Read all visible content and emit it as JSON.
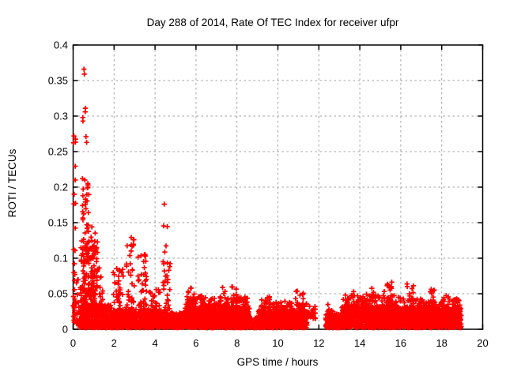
{
  "chart_data": {
    "type": "scatter",
    "title": "Day 288 of 2014, Rate Of TEC Index for receiver ufpr",
    "xlabel": "GPS time / hours",
    "ylabel": "ROTI / TECUs",
    "xlim": [
      0,
      20
    ],
    "ylim": [
      0,
      0.4
    ],
    "xticks": [
      0,
      2,
      4,
      6,
      8,
      10,
      12,
      14,
      16,
      18,
      20
    ],
    "xtick_labels": [
      "0",
      "2",
      "4",
      "6",
      "8",
      "10",
      "12",
      "14",
      "16",
      "18",
      "20"
    ],
    "yticks": [
      0,
      0.05,
      0.1,
      0.15,
      0.2,
      0.25,
      0.3,
      0.35,
      0.4
    ],
    "ytick_labels": [
      "0",
      "0.05",
      "0.1",
      "0.15",
      "0.2",
      "0.25",
      "0.3",
      "0.35",
      "0.4"
    ],
    "grid": {
      "show": true,
      "color": "#a0a0a0",
      "dash": "2.5,3.5"
    },
    "marker": {
      "shape": "plus",
      "color": "#ff0000",
      "size": 6.4,
      "stroke_width": 1.7
    },
    "background": "#ffffff",
    "border_color": "#000000",
    "seed": 20142881,
    "data_gaps": [
      [
        11.85,
        12.33
      ],
      [
        18.95,
        20
      ]
    ],
    "outliers": [
      [
        0.53,
        0.366
      ],
      [
        0.55,
        0.359
      ],
      [
        0.6,
        0.311
      ],
      [
        0.59,
        0.306
      ],
      [
        0.47,
        0.298
      ],
      [
        0.48,
        0.293
      ],
      [
        0.04,
        0.272
      ],
      [
        0.63,
        0.271
      ],
      [
        0.66,
        0.263
      ],
      [
        0.1,
        0.21
      ],
      [
        0.72,
        0.205
      ],
      [
        0.7,
        0.199
      ],
      [
        0.05,
        0.19
      ],
      [
        4.45,
        0.176
      ],
      [
        2.97,
        0.126
      ]
    ],
    "density_segments": [
      {
        "x0": 0.0,
        "x1": 0.25,
        "n": 25,
        "y0": 0.008,
        "y1": 0.07,
        "pow": 1.3
      },
      {
        "x0": 0.0,
        "x1": 0.12,
        "n": 20,
        "y0": 0.03,
        "y1": 0.268,
        "pow": 1.5
      },
      {
        "x0": 0.25,
        "x1": 1.9,
        "n": 380,
        "y0": 0.002,
        "y1": 0.034,
        "pow": 1.3
      },
      {
        "x0": 1.9,
        "x1": 4.3,
        "n": 540,
        "y0": 0.002,
        "y1": 0.028,
        "pow": 1.3
      },
      {
        "x0": 4.3,
        "x1": 5.45,
        "n": 240,
        "y0": 0.002,
        "y1": 0.024,
        "pow": 1.3
      },
      {
        "x0": 5.45,
        "x1": 8.6,
        "n": 720,
        "y0": 0.002,
        "y1": 0.03,
        "pow": 1.3
      },
      {
        "x0": 8.6,
        "x1": 9.05,
        "n": 70,
        "y0": 0.002,
        "y1": 0.016,
        "pow": 1.3
      },
      {
        "x0": 9.05,
        "x1": 11.45,
        "n": 540,
        "y0": 0.002,
        "y1": 0.026,
        "pow": 1.3
      },
      {
        "x0": 11.45,
        "x1": 11.85,
        "n": 25,
        "y0": 0.015,
        "y1": 0.034,
        "pow": 1.5
      },
      {
        "x0": 12.33,
        "x1": 13.1,
        "n": 130,
        "y0": 0.002,
        "y1": 0.022,
        "pow": 1.3
      },
      {
        "x0": 13.1,
        "x1": 16.0,
        "n": 660,
        "y0": 0.002,
        "y1": 0.032,
        "pow": 1.3
      },
      {
        "x0": 16.0,
        "x1": 18.95,
        "n": 640,
        "y0": 0.002,
        "y1": 0.03,
        "pow": 1.3
      },
      {
        "x0": 0.35,
        "x1": 1.2,
        "n": 160,
        "y0": 0.018,
        "y1": 0.125,
        "pow": 2.0
      },
      {
        "x0": 5.5,
        "x1": 8.55,
        "n": 260,
        "y0": 0.018,
        "y1": 0.046,
        "pow": 2.0
      },
      {
        "x0": 9.05,
        "x1": 11.4,
        "n": 170,
        "y0": 0.016,
        "y1": 0.038,
        "pow": 2.0
      },
      {
        "x0": 13.15,
        "x1": 16.0,
        "n": 260,
        "y0": 0.018,
        "y1": 0.048,
        "pow": 2.0
      },
      {
        "x0": 16.1,
        "x1": 18.9,
        "n": 210,
        "y0": 0.016,
        "y1": 0.043,
        "pow": 2.0
      },
      {
        "x0": 0.45,
        "x1": 0.78,
        "n": 60,
        "y0": 0.04,
        "y1": 0.215,
        "pow": 1.4
      },
      {
        "x0": 0.8,
        "x1": 1.08,
        "n": 32,
        "y0": 0.035,
        "y1": 0.148,
        "pow": 1.6
      },
      {
        "x0": 1.1,
        "x1": 1.45,
        "n": 26,
        "y0": 0.025,
        "y1": 0.092,
        "pow": 1.6
      },
      {
        "x0": 1.95,
        "x1": 2.45,
        "n": 45,
        "y0": 0.02,
        "y1": 0.086,
        "pow": 1.8
      },
      {
        "x0": 2.6,
        "x1": 3.0,
        "n": 38,
        "y0": 0.02,
        "y1": 0.131,
        "pow": 1.8
      },
      {
        "x0": 3.15,
        "x1": 3.6,
        "n": 42,
        "y0": 0.02,
        "y1": 0.107,
        "pow": 1.8
      },
      {
        "x0": 3.6,
        "x1": 4.25,
        "n": 32,
        "y0": 0.015,
        "y1": 0.058,
        "pow": 1.8
      },
      {
        "x0": 4.35,
        "x1": 4.75,
        "n": 32,
        "y0": 0.025,
        "y1": 0.154,
        "pow": 1.5
      },
      {
        "x0": 5.55,
        "x1": 5.95,
        "n": 26,
        "y0": 0.02,
        "y1": 0.062,
        "pow": 1.6
      },
      {
        "x0": 6.05,
        "x1": 6.55,
        "n": 22,
        "y0": 0.015,
        "y1": 0.048,
        "pow": 1.6
      },
      {
        "x0": 6.6,
        "x1": 7.2,
        "n": 25,
        "y0": 0.015,
        "y1": 0.045,
        "pow": 1.6
      },
      {
        "x0": 7.25,
        "x1": 8.0,
        "n": 45,
        "y0": 0.02,
        "y1": 0.061,
        "pow": 1.7
      },
      {
        "x0": 8.1,
        "x1": 8.5,
        "n": 16,
        "y0": 0.015,
        "y1": 0.044,
        "pow": 1.6
      },
      {
        "x0": 9.15,
        "x1": 9.7,
        "n": 30,
        "y0": 0.015,
        "y1": 0.046,
        "pow": 1.7
      },
      {
        "x0": 9.75,
        "x1": 10.2,
        "n": 18,
        "y0": 0.012,
        "y1": 0.034,
        "pow": 1.6
      },
      {
        "x0": 10.25,
        "x1": 10.7,
        "n": 20,
        "y0": 0.015,
        "y1": 0.04,
        "pow": 1.6
      },
      {
        "x0": 10.8,
        "x1": 11.3,
        "n": 26,
        "y0": 0.015,
        "y1": 0.055,
        "pow": 1.7
      },
      {
        "x0": 12.42,
        "x1": 12.68,
        "n": 14,
        "y0": 0.01,
        "y1": 0.035,
        "pow": 1.6
      },
      {
        "x0": 12.75,
        "x1": 12.98,
        "n": 10,
        "y0": 0.01,
        "y1": 0.03,
        "pow": 1.6
      },
      {
        "x0": 13.3,
        "x1": 13.8,
        "n": 26,
        "y0": 0.02,
        "y1": 0.054,
        "pow": 1.7
      },
      {
        "x0": 14.05,
        "x1": 14.35,
        "n": 16,
        "y0": 0.02,
        "y1": 0.05,
        "pow": 1.6
      },
      {
        "x0": 14.45,
        "x1": 14.8,
        "n": 20,
        "y0": 0.02,
        "y1": 0.058,
        "pow": 1.6
      },
      {
        "x0": 15.15,
        "x1": 15.6,
        "n": 32,
        "y0": 0.025,
        "y1": 0.069,
        "pow": 1.5
      },
      {
        "x0": 16.25,
        "x1": 16.65,
        "n": 26,
        "y0": 0.02,
        "y1": 0.064,
        "pow": 1.6
      },
      {
        "x0": 16.7,
        "x1": 17.25,
        "n": 18,
        "y0": 0.012,
        "y1": 0.04,
        "pow": 1.6
      },
      {
        "x0": 17.35,
        "x1": 17.75,
        "n": 22,
        "y0": 0.015,
        "y1": 0.057,
        "pow": 1.6
      },
      {
        "x0": 18.0,
        "x1": 18.4,
        "n": 22,
        "y0": 0.015,
        "y1": 0.054,
        "pow": 1.6
      },
      {
        "x0": 18.5,
        "x1": 18.92,
        "n": 18,
        "y0": 0.012,
        "y1": 0.046,
        "pow": 1.6
      }
    ]
  }
}
